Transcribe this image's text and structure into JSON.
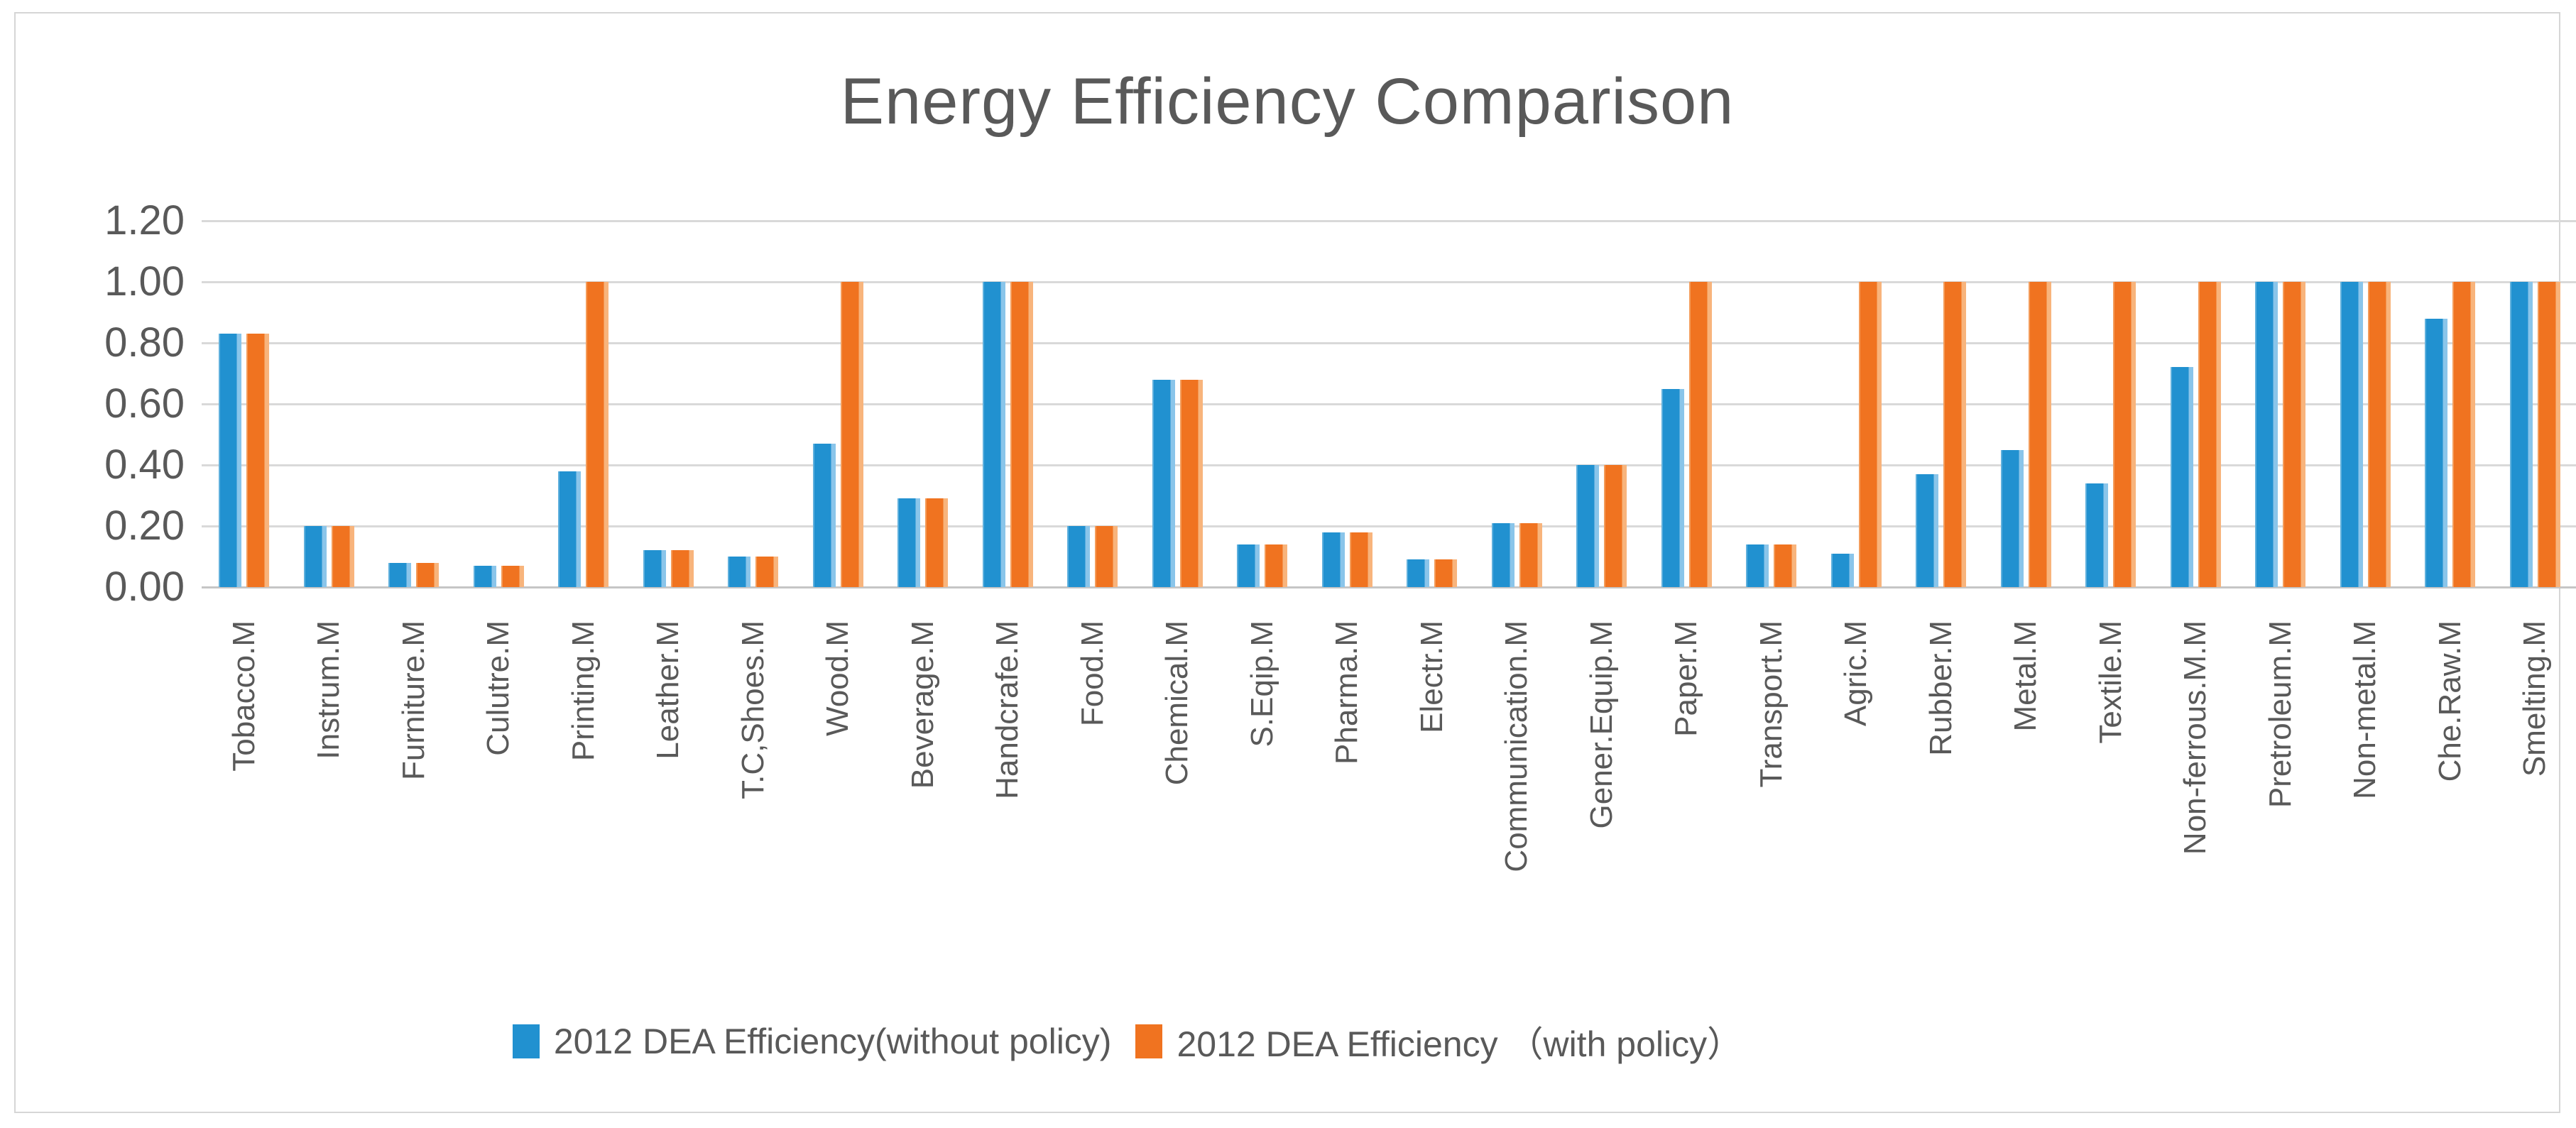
{
  "title": "Energy Efficiency Comparison",
  "legend": {
    "without_policy": "2012 DEA Efficiency(without policy)",
    "with_policy": "2012 DEA Efficiency （with policy）"
  },
  "colors": {
    "blue": "#2191d0",
    "orange": "#f07320",
    "gridline": "#d9d9d9",
    "text": "#595959"
  },
  "chart_data": {
    "type": "bar",
    "title": "Energy Efficiency Comparison",
    "xlabel": "",
    "ylabel": "",
    "ylim": [
      0,
      1.2
    ],
    "ytick_labels": [
      "1.20",
      "1.00",
      "0.80",
      "0.60",
      "0.40",
      "0.20",
      "0.00"
    ],
    "ytick_values": [
      1.2,
      1.0,
      0.8,
      0.6,
      0.4,
      0.2,
      0.0
    ],
    "grid": true,
    "legend_position": "bottom",
    "categories": [
      "Tobacco.M",
      "Instrum.M",
      "Furniture.M",
      "Culutre.M",
      "Printing.M",
      "Leather.M",
      "T.C,Shoes.M",
      "Wood.M",
      "Beverage.M",
      "Handcrafe.M",
      "Food.M",
      "Chemical.M",
      "S.Eqip.M",
      "Pharma.M",
      "Electr.M",
      "Communication.M",
      "Gener.Equip.M",
      "Paper.M",
      "Transport.M",
      "Agric.M",
      "Rubber.M",
      "Metal.M",
      "Textile.M",
      "Non-ferrous.M.M",
      "Pretroleum.M",
      "Non-metal.M",
      "Che.Raw.M",
      "Smelting.M"
    ],
    "series": [
      {
        "name": "2012 DEA Efficiency(without policy)",
        "color": "#2191d0",
        "values": [
          0.83,
          0.2,
          0.08,
          0.07,
          0.38,
          0.12,
          0.1,
          0.47,
          0.29,
          1.0,
          0.2,
          0.68,
          0.14,
          0.18,
          0.09,
          0.21,
          0.4,
          0.65,
          0.14,
          0.11,
          0.37,
          0.45,
          0.34,
          0.72,
          1.0,
          1.0,
          0.88,
          1.0
        ]
      },
      {
        "name": "2012 DEA Efficiency （with policy）",
        "color": "#f07320",
        "values": [
          0.83,
          0.2,
          0.08,
          0.07,
          1.0,
          0.12,
          0.1,
          1.0,
          0.29,
          1.0,
          0.2,
          0.68,
          0.14,
          0.18,
          0.09,
          0.21,
          0.4,
          1.0,
          0.14,
          1.0,
          1.0,
          1.0,
          1.0,
          1.0,
          1.0,
          1.0,
          1.0,
          1.0
        ]
      }
    ]
  }
}
